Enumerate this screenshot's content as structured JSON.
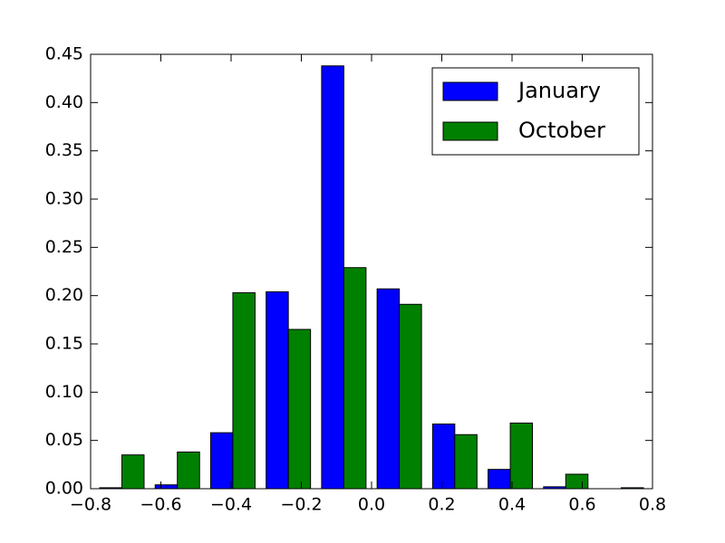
{
  "chart_data": {
    "type": "histogram",
    "bins": [
      -0.79,
      -0.632,
      -0.474,
      -0.316,
      -0.158,
      0.0,
      0.158,
      0.316,
      0.474,
      0.632,
      0.79
    ],
    "series": [
      {
        "name": "January",
        "color": "#0000ff",
        "values": [
          0.001,
          0.004,
          0.058,
          0.204,
          0.438,
          0.207,
          0.067,
          0.02,
          0.002,
          0.0
        ]
      },
      {
        "name": "October",
        "color": "#008000",
        "values": [
          0.035,
          0.038,
          0.203,
          0.165,
          0.229,
          0.191,
          0.056,
          0.068,
          0.015,
          0.001
        ]
      }
    ],
    "xlim": [
      -0.8,
      0.8
    ],
    "xticks": [
      {
        "value": -0.8,
        "label": "−0.8"
      },
      {
        "value": -0.6,
        "label": "−0.6"
      },
      {
        "value": -0.4,
        "label": "−0.4"
      },
      {
        "value": -0.2,
        "label": "−0.2"
      },
      {
        "value": 0.0,
        "label": "0.0"
      },
      {
        "value": 0.2,
        "label": "0.2"
      },
      {
        "value": 0.4,
        "label": "0.4"
      },
      {
        "value": 0.6,
        "label": "0.6"
      },
      {
        "value": 0.8,
        "label": "0.8"
      }
    ],
    "ylim": [
      0,
      0.45
    ],
    "yticks": [
      {
        "value": 0,
        "label": "0.00"
      },
      {
        "value": 0.05,
        "label": "0.05"
      },
      {
        "value": 0.1,
        "label": "0.10"
      },
      {
        "value": 0.15,
        "label": "0.15"
      },
      {
        "value": 0.2,
        "label": "0.20"
      },
      {
        "value": 0.25,
        "label": "0.25"
      },
      {
        "value": 0.3,
        "label": "0.30"
      },
      {
        "value": 0.35,
        "label": "0.35"
      },
      {
        "value": 0.4,
        "label": "0.40"
      },
      {
        "value": 0.45,
        "label": "0.45"
      }
    ],
    "legend": "upper right"
  }
}
